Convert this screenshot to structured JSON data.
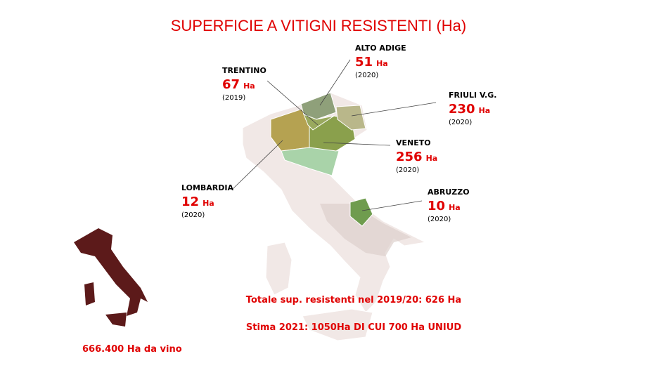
{
  "header": {
    "title": "SUPERFICIE A VITIGNI RESISTENTI (Ha)"
  },
  "regions": [
    {
      "name": "ALTO ADIGE",
      "value": "51",
      "unit": "Ha",
      "year": "(2020)"
    },
    {
      "name": "TRENTINO",
      "value": "67",
      "unit": "Ha",
      "year": "(2019)"
    },
    {
      "name": "FRIULI V.G.",
      "value": "230",
      "unit": "Ha",
      "year": "(2020)"
    },
    {
      "name": "VENETO",
      "value": "256",
      "unit": "Ha",
      "year": "(2020)"
    },
    {
      "name": "LOMBARDIA",
      "value": "12",
      "unit": "Ha",
      "year": "(2020)"
    },
    {
      "name": "ABRUZZO",
      "value": "10",
      "unit": "Ha",
      "year": "(2020)"
    }
  ],
  "totals": {
    "line1": "Totale sup. resistenti nel 2019/20: 626 Ha",
    "line2": "Stima 2021: 1050Ha DI CUI 700 Ha UNIUD"
  },
  "national": {
    "label": "666.400 Ha da vino"
  }
}
